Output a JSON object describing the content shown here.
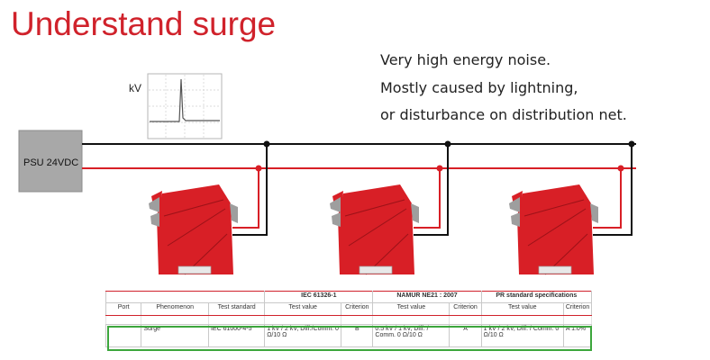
{
  "slide": {
    "title": "Understand surge",
    "description": [
      "Very high energy noise.",
      "Mostly caused by lightning,",
      "or disturbance on distribution net."
    ]
  },
  "diagram": {
    "psu_label": "PSU 24VDC",
    "waveform_unit": "kV",
    "colors": {
      "positive_line": "#d81f26",
      "negative_line": "#111111",
      "device": "#d81f26",
      "psu": "#a8a8a8"
    }
  },
  "table": {
    "groups": [
      "IEC 61326-1",
      "NAMUR NE21 : 2007",
      "PR standard specifications"
    ],
    "columns": [
      "Port",
      "Phenomenon",
      "Test standard",
      "Test value",
      "Criterion",
      "Test value",
      "Criterion",
      "Test value",
      "Criterion"
    ],
    "row": {
      "port": "",
      "phenomenon": "Surge",
      "test_standard": "IEC 61000-4-5",
      "iec_value": "1 kV / 2 kV, Diff./Comm. 0 Ω/10 Ω",
      "iec_criterion": "B",
      "namur_value": "0.5 kV / 1 kV, Diff. / Comm. 0 Ω/10 Ω",
      "namur_criterion": "A",
      "pr_value": "1 kV / 2 kV, Diff. / Comm. 0 Ω/10 Ω",
      "pr_criterion": "A 1.0%"
    }
  }
}
